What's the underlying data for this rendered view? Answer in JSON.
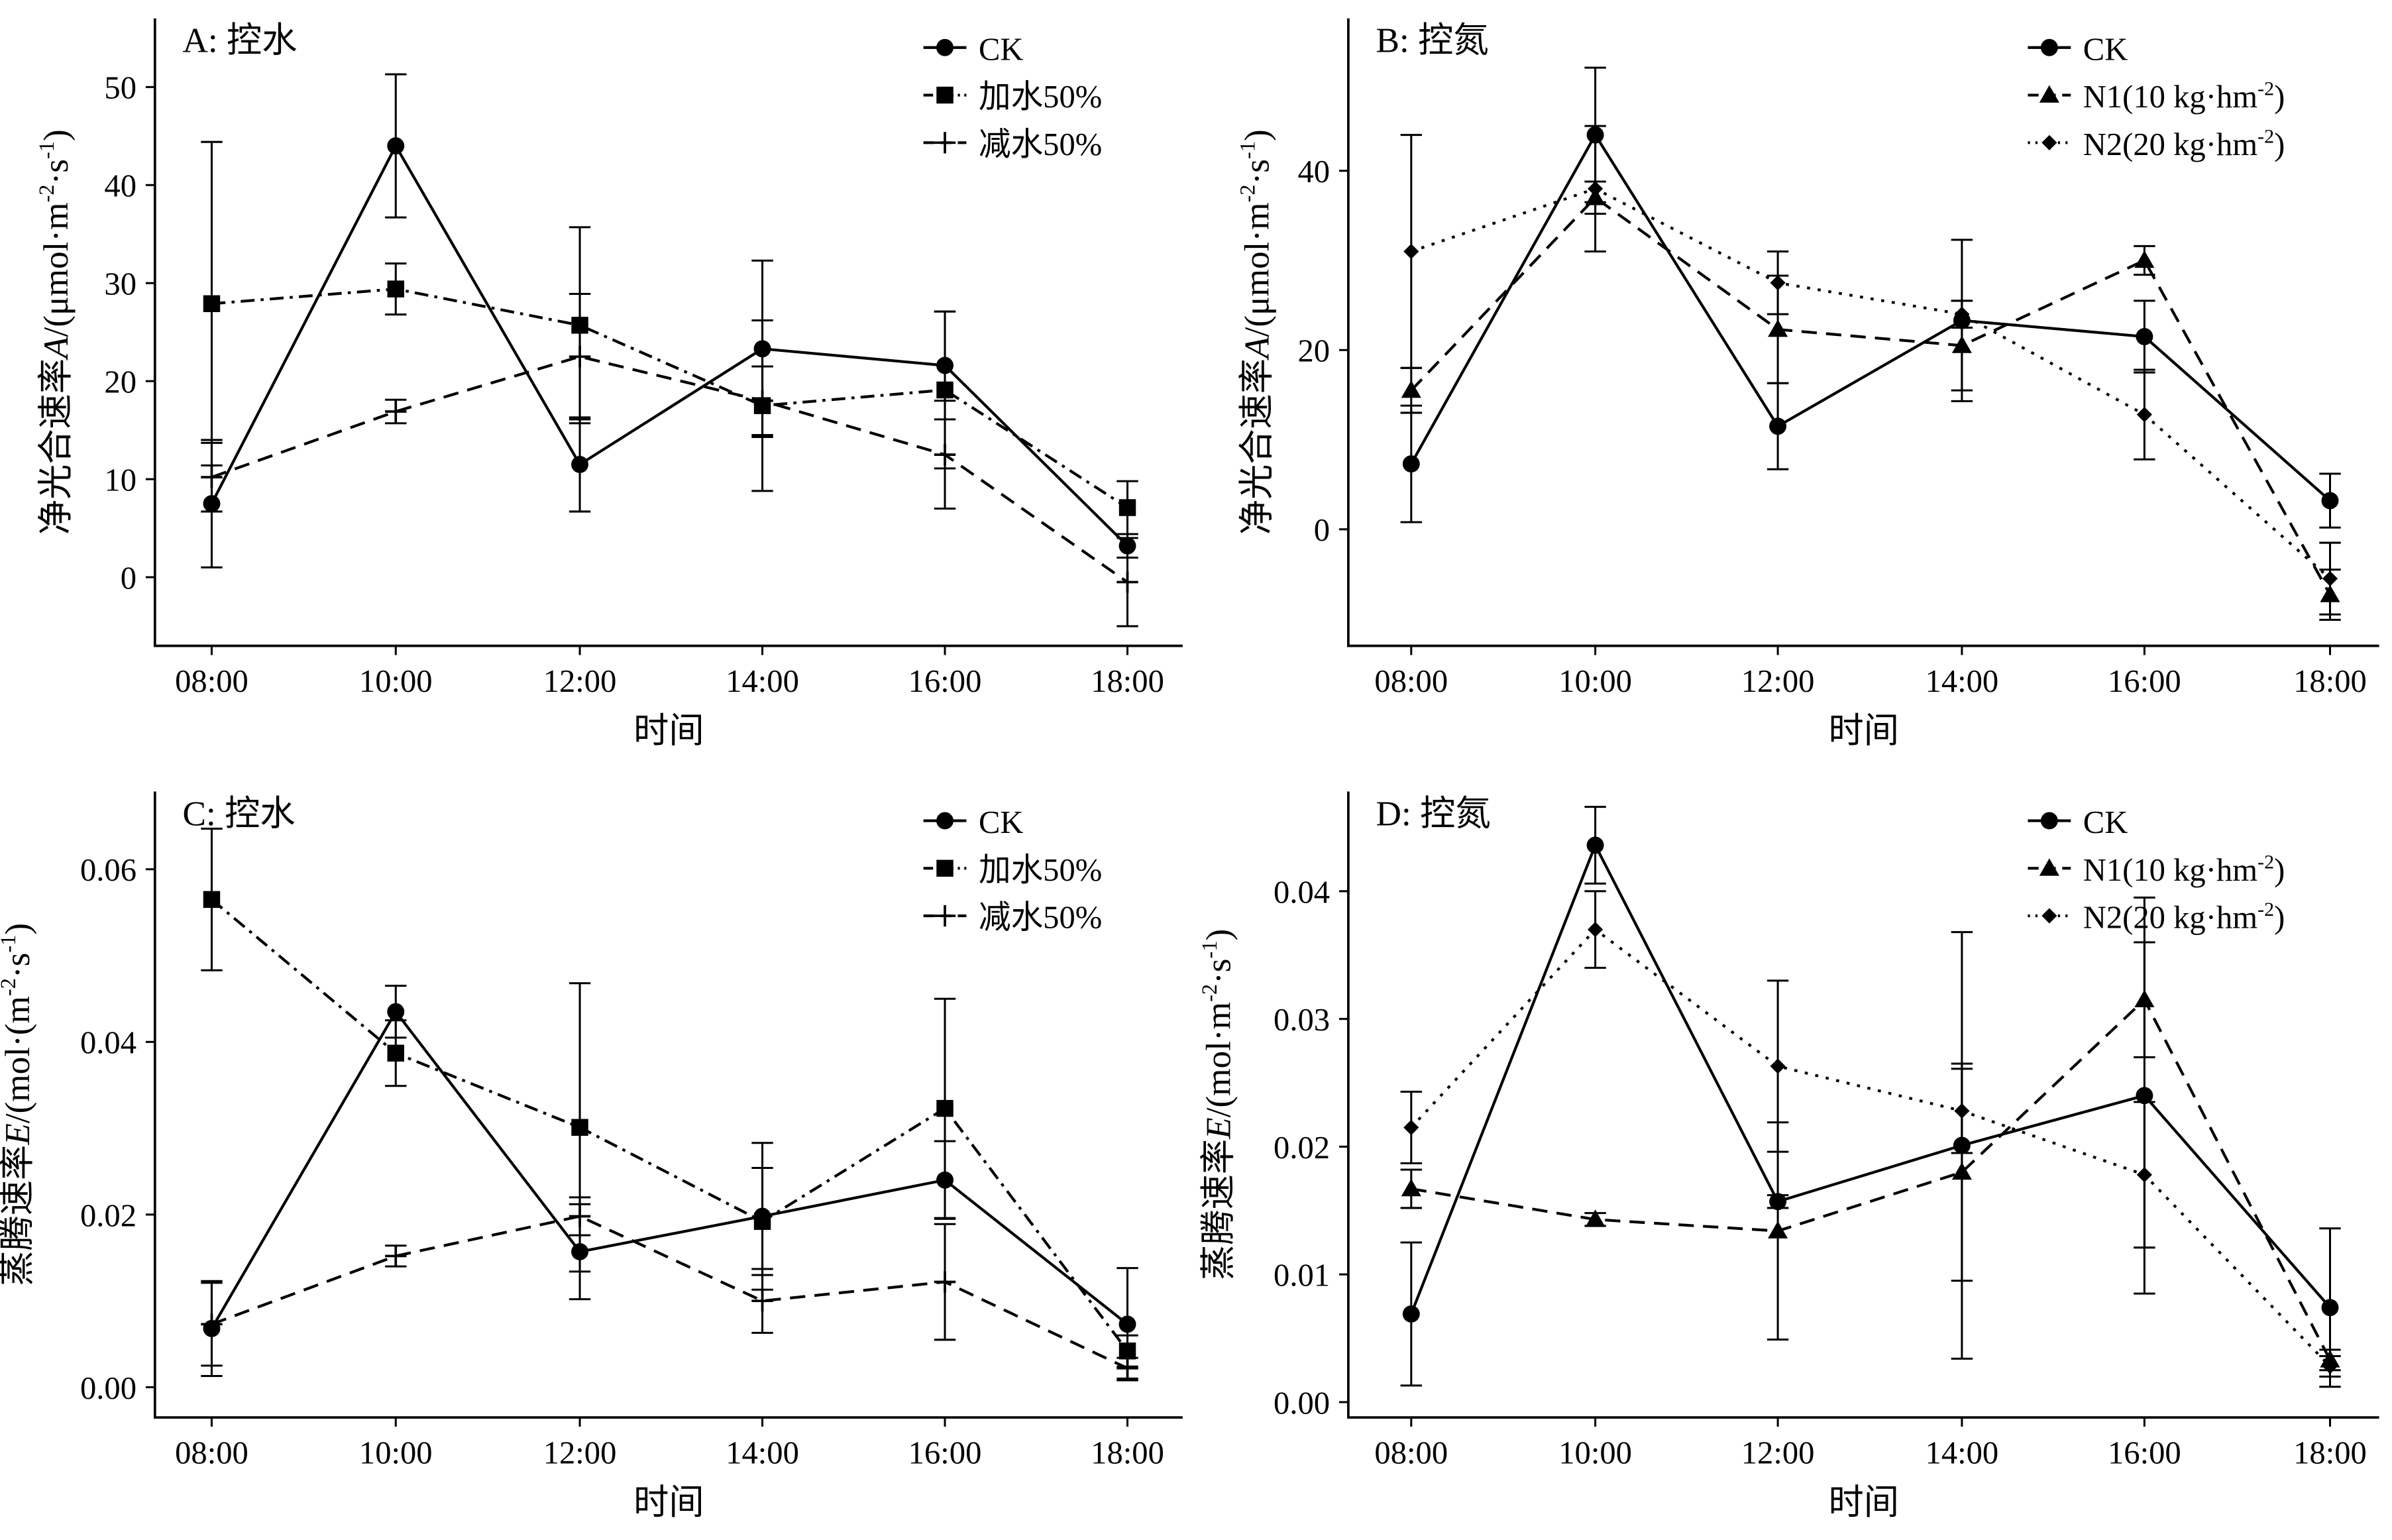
{
  "chart_data": [
    {
      "type": "line",
      "panel": "A: 控水",
      "xlabel": "时间",
      "ylabel_main": "净光合速率",
      "ylabel_var": "A",
      "ylabel_unit": "/(μmol·m",
      "ylabel_unit_mid": "·s",
      "ylabel_unit_end": ")",
      "ylabel_sup1": "-2",
      "ylabel_sup2": "-1",
      "categories": [
        "08:00",
        "10:00",
        "12:00",
        "14:00",
        "16:00",
        "18:00"
      ],
      "ylim": [
        -7,
        57
      ],
      "yticks": [
        0,
        10,
        20,
        30,
        40,
        50
      ],
      "ytick_labels": [
        "0",
        "10",
        "20",
        "30",
        "40",
        "50"
      ],
      "series": [
        {
          "name": "CK",
          "marker": "circle",
          "dash": "solid",
          "values": [
            7.5,
            44.0,
            11.5,
            23.3,
            21.6,
            3.2
          ],
          "errors": [
            6.5,
            7.3,
            4.8,
            9.0,
            5.5,
            1.2
          ]
        },
        {
          "name": "加水50%",
          "marker": "square",
          "dash": "dashdot",
          "values": [
            27.9,
            29.4,
            25.7,
            17.5,
            19.1,
            7.1
          ],
          "errors": [
            16.5,
            2.6,
            10.0,
            8.7,
            8.0,
            2.7
          ]
        },
        {
          "name": "减水50%",
          "marker": "plus",
          "dash": "dash",
          "values": [
            10.2,
            16.9,
            22.5,
            18.0,
            12.5,
            -0.5
          ],
          "errors": [
            3.5,
            1.2,
            6.4,
            3.5,
            5.5,
            4.5
          ]
        }
      ]
    },
    {
      "type": "line",
      "panel": "B: 控氮",
      "xlabel": "时间",
      "ylabel_main": "净光合速率",
      "ylabel_var": "A",
      "ylabel_unit": "/(μmol·m",
      "ylabel_unit_mid": "·s",
      "ylabel_unit_end": ")",
      "ylabel_sup1": "-2",
      "ylabel_sup2": "-1",
      "categories": [
        "08:00",
        "10:00",
        "12:00",
        "14:00",
        "16:00",
        "18:00"
      ],
      "ylim": [
        -13,
        57
      ],
      "yticks": [
        0,
        20,
        40
      ],
      "ytick_labels": [
        "0",
        "20",
        "40"
      ],
      "series": [
        {
          "name": "CK",
          "marker": "circle",
          "dash": "solid",
          "values": [
            7.3,
            44.0,
            11.5,
            23.3,
            21.5,
            3.2
          ],
          "errors": [
            6.5,
            7.5,
            4.8,
            9.0,
            4.0,
            3.0
          ]
        },
        {
          "name": "N1(10 kg·hm",
          "name_sup": "-2",
          "name_end": ")",
          "marker": "triangle",
          "dash": "dash",
          "values": [
            15.5,
            37.0,
            22.3,
            20.5,
            30.0,
            -7.3
          ],
          "errors": [
            2.5,
            1.8,
            6.0,
            5.0,
            1.6,
            2.8
          ]
        },
        {
          "name": "N2(20 kg·hm",
          "name_sup": "-2",
          "name_end": ")",
          "marker": "diamond",
          "dash": "dot",
          "values": [
            31.0,
            38.0,
            27.5,
            24.0,
            12.8,
            -5.5
          ],
          "errors": [
            13.0,
            7.0,
            3.5,
            1.5,
            5.0,
            4.0
          ]
        }
      ]
    },
    {
      "type": "line",
      "panel": "C: 控水",
      "xlabel": "时间",
      "ylabel_main": "蒸腾速率",
      "ylabel_var": "E",
      "ylabel_unit": "/(mol·(m",
      "ylabel_unit_mid": "·s",
      "ylabel_unit_end": ")",
      "ylabel_sup1": "-2",
      "ylabel_sup2": "-1",
      "categories": [
        "08:00",
        "10:00",
        "12:00",
        "14:00",
        "16:00",
        "18:00"
      ],
      "ylim": [
        -0.0035,
        0.069
      ],
      "yticks": [
        0,
        0.02,
        0.04,
        0.06
      ],
      "ytick_labels": [
        "0.00",
        "0.02",
        "0.04",
        "0.06"
      ],
      "series": [
        {
          "name": "CK",
          "marker": "circle",
          "dash": "solid",
          "values": [
            0.0068,
            0.0435,
            0.0157,
            0.0198,
            0.024,
            0.0073
          ],
          "errors": [
            0.0055,
            0.003,
            0.0055,
            0.0085,
            0.0045,
            0.0065
          ]
        },
        {
          "name": "加水50%",
          "marker": "square",
          "dash": "dashdot",
          "values": [
            0.0565,
            0.0387,
            0.0301,
            0.0192,
            0.0323,
            0.0042
          ],
          "errors": [
            0.0082,
            0.0038,
            0.0167,
            0.0062,
            0.0127,
            0.0018
          ]
        },
        {
          "name": "减水50%",
          "marker": "plus",
          "dash": "dash",
          "values": [
            0.0073,
            0.0152,
            0.0198,
            0.01,
            0.0122,
            0.0022
          ],
          "errors": [
            0.0048,
            0.0012,
            0.0022,
            0.0037,
            0.0067,
            0.0012
          ]
        }
      ]
    },
    {
      "type": "line",
      "panel": "D: 控氮",
      "xlabel": "时间",
      "ylabel_main": "蒸腾速率",
      "ylabel_var": "E",
      "ylabel_unit": "/(mol·m",
      "ylabel_unit_mid": "·s",
      "ylabel_unit_end": ")",
      "ylabel_sup1": "-2",
      "ylabel_sup2": "-1",
      "categories": [
        "08:00",
        "10:00",
        "12:00",
        "14:00",
        "16:00",
        "18:00"
      ],
      "ylim": [
        -0.0012,
        0.0478
      ],
      "yticks": [
        0,
        0.01,
        0.02,
        0.03,
        0.04
      ],
      "ytick_labels": [
        "0.00",
        "0.01",
        "0.02",
        "0.03",
        "0.04"
      ],
      "series": [
        {
          "name": "CK",
          "marker": "circle",
          "dash": "solid",
          "values": [
            0.0069,
            0.0436,
            0.0157,
            0.0201,
            0.024,
            0.0074
          ],
          "errors": [
            0.0056,
            0.003,
            0.0005,
            0.0167,
            0.0155,
            0.0062
          ]
        },
        {
          "name": "N1(10 kg·hm",
          "name_sup": "-2",
          "name_end": ")",
          "marker": "triangle",
          "dash": "dash",
          "values": [
            0.0167,
            0.0143,
            0.0134,
            0.018,
            0.0315,
            0.0033
          ],
          "errors": [
            0.0015,
            0.0005,
            0.0085,
            0.0085,
            0.0045,
            0.0008
          ]
        },
        {
          "name": "N2(20 kg·hm",
          "name_sup": "-2",
          "name_end": ")",
          "marker": "diamond",
          "dash": "dot",
          "values": [
            0.0215,
            0.037,
            0.0263,
            0.0228,
            0.0178,
            0.0028
          ],
          "errors": [
            0.0028,
            0.003,
            0.0067,
            0.0033,
            0.0057,
            0.0008
          ]
        }
      ]
    }
  ]
}
